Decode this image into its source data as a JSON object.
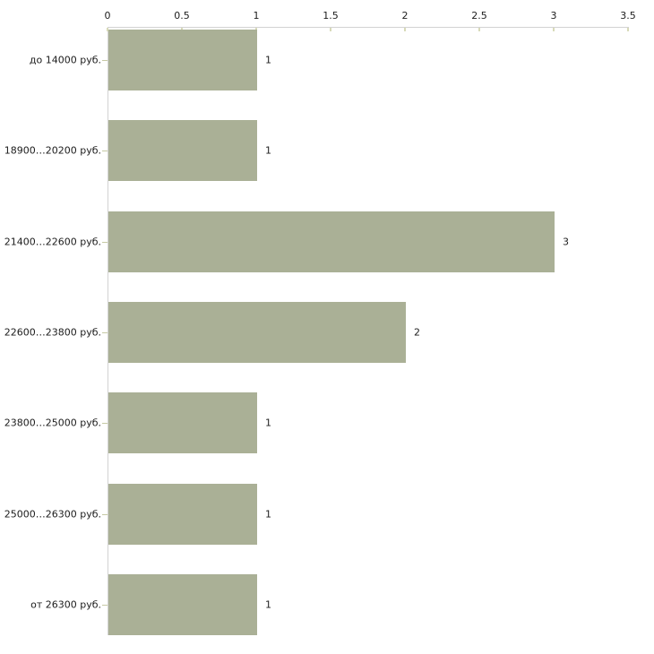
{
  "chart_data": {
    "type": "bar",
    "orientation": "horizontal",
    "title": "",
    "categories": [
      "до 14000 руб.",
      "18900…20200 руб.",
      "21400…22600 руб.",
      "22600…23800 руб.",
      "23800…25000 руб.",
      "25000…26300 руб.",
      "от 26300 руб."
    ],
    "values": [
      1,
      1,
      3,
      2,
      1,
      1,
      1
    ],
    "value_labels": [
      "1",
      "1",
      "3",
      "2",
      "1",
      "1",
      "1"
    ],
    "x_ticks": [
      "0",
      "0.5",
      "1",
      "1.5",
      "2",
      "2.5",
      "3",
      "3.5"
    ],
    "x_tick_values": [
      0,
      0.5,
      1,
      1.5,
      2,
      2.5,
      3,
      3.5
    ],
    "xlim": [
      0,
      3.5
    ],
    "xlabel": "",
    "ylabel": "",
    "axis_position": "top",
    "grid": false,
    "legend": false,
    "colors": {
      "bar": "#aab096",
      "axis_line": "#d3d3d3",
      "tick_mark": "#d8dab9",
      "category_tick": "#c6c9a4",
      "text": "#1c1c1c",
      "background": "#ffffff"
    }
  }
}
